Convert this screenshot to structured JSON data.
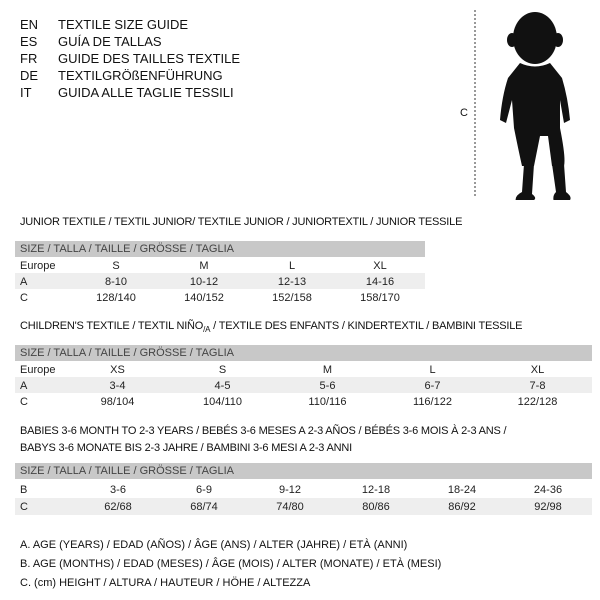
{
  "header": {
    "languages": [
      {
        "code": "EN",
        "title": "TEXTILE SIZE GUIDE"
      },
      {
        "code": "ES",
        "title": "GUÍA DE TALLAS"
      },
      {
        "code": "FR",
        "title": "GUIDE DES TAILLES TEXTILE"
      },
      {
        "code": "DE",
        "title": "TEXTILGRÖßENFÜHRUNG"
      },
      {
        "code": "IT",
        "title": "GUIDA ALLE TAGLIE TESSILI"
      }
    ],
    "figure_label": "C",
    "figure_icon": "baby-silhouette-icon"
  },
  "junior": {
    "title": "JUNIOR TEXTILE / TEXTIL JUNIOR/ TEXTILE JUNIOR / JUNIORTEXTIL / JUNIOR TESSILE",
    "size_header": "SIZE / TALLA / TAILLE / GRÖSSE / TAGLIA",
    "rows": [
      {
        "label": "Europe",
        "values": [
          "S",
          "M",
          "L",
          "XL"
        ]
      },
      {
        "label": "A",
        "values": [
          "8-10",
          "10-12",
          "12-13",
          "14-16"
        ]
      },
      {
        "label": "C",
        "values": [
          "128/140",
          "140/152",
          "152/158",
          "158/170"
        ]
      }
    ]
  },
  "children": {
    "title": "CHILDREN'S TEXTILE / TEXTIL NIÑO",
    "title_sub": "/A",
    "title_rest": " / TEXTILE DES ENFANTS / KINDERTEXTIL / BAMBINI TESSILE",
    "size_header": "SIZE / TALLA / TAILLE / GRÖSSE / TAGLIA",
    "rows": [
      {
        "label": "Europe",
        "values": [
          "XS",
          "S",
          "M",
          "L",
          "XL"
        ]
      },
      {
        "label": "A",
        "values": [
          "3-4",
          "4-5",
          "5-6",
          "6-7",
          "7-8"
        ]
      },
      {
        "label": "C",
        "values": [
          "98/104",
          "104/110",
          "110/116",
          "116/122",
          "122/128"
        ]
      }
    ]
  },
  "babies": {
    "title_line1": "BABIES 3-6 MONTH TO 2-3 YEARS / BEBÉS 3-6 MESES A 2-3 AÑOS / BÉBÉS 3-6 MOIS À 2-3 ANS /",
    "title_line2": "BABYS 3-6 MONATE BIS 2-3 JAHRE / BAMBINI 3-6 MESI A 2-3 ANNI",
    "size_header": "SIZE / TALLA / TAILLE / GRÖSSE / TAGLIA",
    "rows": [
      {
        "label": "B",
        "values": [
          "3-6",
          "6-9",
          "9-12",
          "12-18",
          "18-24",
          "24-36"
        ]
      },
      {
        "label": "C",
        "values": [
          "62/68",
          "68/74",
          "74/80",
          "80/86",
          "86/92",
          "92/98"
        ]
      }
    ]
  },
  "legend": [
    "A. AGE (YEARS) / EDAD (AÑOS) / ÂGE (ANS) / ALTER (JAHRE) / ETÀ (ANNI)",
    "B. AGE (MONTHS) / EDAD (MESES) / ÂGE (MOIS) / ALTER (MONATE) / ETÀ (MESI)",
    "C. (cm) HEIGHT / ALTURA / HAUTEUR / HÖHE / ALTEZZA"
  ]
}
